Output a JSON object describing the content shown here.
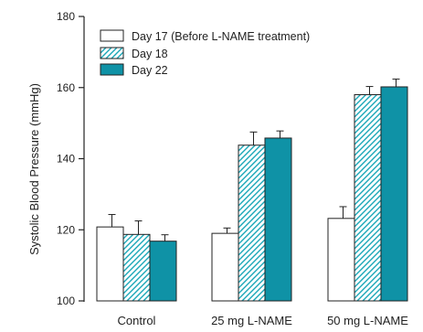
{
  "chart_data": {
    "type": "bar",
    "title": "",
    "xlabel": "",
    "ylabel": "Systolic Blood Pressure (mmHg)",
    "ylim": [
      100,
      180
    ],
    "yticks": [
      100,
      120,
      140,
      160,
      180
    ],
    "grid": false,
    "legend_position": "top-left",
    "categories": [
      "Control",
      "25 mg L-NAME",
      "50 mg L-NAME"
    ],
    "series": [
      {
        "name": "Day 17 (Before L-NAME treatment)",
        "pattern": "solid",
        "fill": "#ffffff",
        "values": [
          120.8,
          119.0,
          123.2
        ],
        "errors": [
          3.5,
          1.5,
          3.3
        ]
      },
      {
        "name": "Day 18",
        "pattern": "hatch",
        "fill": "#1aa7b8",
        "values": [
          118.7,
          143.8,
          158.0
        ],
        "errors": [
          3.8,
          3.7,
          2.3
        ]
      },
      {
        "name": "Day 22",
        "pattern": "solid",
        "fill": "#0f92a6",
        "values": [
          116.8,
          145.8,
          160.2
        ],
        "errors": [
          1.8,
          2.0,
          2.2
        ]
      }
    ]
  }
}
